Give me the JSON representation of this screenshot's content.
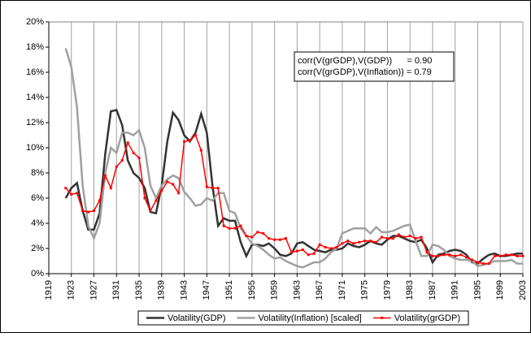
{
  "chart_data": {
    "type": "line",
    "x": [
      1922,
      1923,
      1924,
      1925,
      1926,
      1927,
      1928,
      1929,
      1930,
      1931,
      1932,
      1933,
      1934,
      1935,
      1936,
      1937,
      1938,
      1939,
      1940,
      1941,
      1942,
      1943,
      1944,
      1945,
      1946,
      1947,
      1948,
      1949,
      1950,
      1951,
      1952,
      1953,
      1954,
      1955,
      1956,
      1957,
      1958,
      1959,
      1960,
      1961,
      1962,
      1963,
      1964,
      1965,
      1966,
      1967,
      1968,
      1969,
      1970,
      1971,
      1972,
      1973,
      1974,
      1975,
      1976,
      1977,
      1978,
      1979,
      1980,
      1981,
      1982,
      1983,
      1984,
      1985,
      1986,
      1987,
      1988,
      1989,
      1990,
      1991,
      1992,
      1993,
      1994,
      1995,
      1996,
      1997,
      1998,
      1999,
      2000,
      2001,
      2002,
      2003
    ],
    "series": [
      {
        "name": "Volatility(GDP)",
        "color": "#333333",
        "values": [
          6.0,
          6.8,
          7.2,
          5.0,
          3.5,
          3.5,
          4.8,
          9.5,
          12.9,
          13.0,
          11.8,
          9.0,
          8.0,
          7.6,
          6.8,
          4.9,
          4.8,
          7.0,
          10.5,
          12.8,
          12.2,
          11.0,
          10.5,
          11.2,
          12.7,
          11.2,
          7.0,
          3.8,
          4.4,
          4.2,
          4.2,
          2.5,
          1.4,
          2.3,
          2.3,
          2.2,
          2.4,
          2.0,
          1.5,
          1.4,
          1.6,
          2.4,
          2.5,
          2.2,
          1.9,
          1.8,
          1.7,
          1.9,
          1.9,
          2.0,
          2.4,
          2.2,
          2.1,
          2.3,
          2.6,
          2.4,
          2.3,
          2.7,
          3.0,
          3.0,
          2.8,
          2.6,
          2.5,
          2.7,
          2.0,
          0.9,
          1.5,
          1.6,
          1.8,
          1.9,
          1.8,
          1.5,
          0.9,
          0.8,
          1.2,
          1.5,
          1.6,
          1.4,
          1.4,
          1.5,
          1.6,
          1.6
        ]
      },
      {
        "name": "Volatility(Inflation) [scaled]",
        "color": "#a0a0a0",
        "values": [
          17.9,
          16.4,
          13.2,
          7.0,
          3.8,
          2.8,
          4.0,
          8.0,
          10.0,
          9.6,
          11.2,
          11.2,
          11.0,
          11.4,
          10.0,
          7.0,
          6.0,
          7.0,
          7.5,
          7.8,
          7.6,
          6.5,
          6.0,
          5.4,
          5.5,
          6.0,
          5.8,
          6.4,
          6.4,
          5.0,
          4.8,
          3.6,
          3.0,
          2.4,
          2.2,
          1.9,
          1.5,
          1.2,
          1.3,
          1.0,
          0.8,
          0.6,
          0.5,
          0.7,
          0.9,
          0.9,
          1.2,
          1.7,
          2.0,
          3.2,
          3.4,
          3.6,
          3.6,
          3.6,
          3.2,
          3.7,
          3.3,
          3.3,
          3.4,
          3.6,
          3.8,
          3.9,
          2.6,
          1.4,
          1.4,
          2.3,
          2.2,
          1.9,
          1.4,
          1.2,
          1.1,
          1.1,
          1.0,
          0.6,
          0.7,
          0.8,
          1.0,
          1.0,
          1.0,
          1.1,
          0.8,
          0.8
        ]
      },
      {
        "name": "Volatility(grGDP)",
        "color": "#ff0000",
        "marker": true,
        "values": [
          6.8,
          6.3,
          6.4,
          5.0,
          4.9,
          5.0,
          5.8,
          7.8,
          6.8,
          8.5,
          9.0,
          10.4,
          9.6,
          9.2,
          6.0,
          5.0,
          5.8,
          6.6,
          7.3,
          7.1,
          6.4,
          10.5,
          10.6,
          11.0,
          9.8,
          6.9,
          6.8,
          6.8,
          3.8,
          3.6,
          3.6,
          3.8,
          3.0,
          2.9,
          3.3,
          3.2,
          2.8,
          2.7,
          2.7,
          2.8,
          1.7,
          1.8,
          1.9,
          1.5,
          1.6,
          2.3,
          2.1,
          2.0,
          2.1,
          2.4,
          2.6,
          2.4,
          2.5,
          2.6,
          2.6,
          2.5,
          2.9,
          2.8,
          2.8,
          3.1,
          2.9,
          3.0,
          2.8,
          2.9,
          1.7,
          1.4,
          1.4,
          1.5,
          1.5,
          1.4,
          1.5,
          1.3,
          1.1,
          0.9,
          0.8,
          0.8,
          1.4,
          1.4,
          1.5,
          1.5,
          1.4,
          1.4
        ]
      }
    ],
    "xlim": [
      1919,
      2003
    ],
    "xticks": [
      1919,
      1923,
      1927,
      1931,
      1935,
      1939,
      1943,
      1947,
      1951,
      1955,
      1959,
      1963,
      1967,
      1971,
      1975,
      1979,
      1983,
      1987,
      1991,
      1995,
      1999,
      2003
    ],
    "ylim": [
      0,
      20
    ],
    "yticks": [
      {
        "value": 0,
        "label": "0%"
      },
      {
        "value": 2,
        "label": "2%"
      },
      {
        "value": 4,
        "label": "4%"
      },
      {
        "value": 6,
        "label": "6%"
      },
      {
        "value": 8,
        "label": "8%"
      },
      {
        "value": 10,
        "label": "10%"
      },
      {
        "value": 12,
        "label": "12%"
      },
      {
        "value": 14,
        "label": "14%"
      },
      {
        "value": 16,
        "label": "16%"
      },
      {
        "value": 18,
        "label": "18%"
      },
      {
        "value": 20,
        "label": "20%"
      }
    ],
    "xgrid": true,
    "legend": "bottom",
    "annotations": [
      "corr(V(grGDP),V(GDP))      = 0.90",
      "corr(V(grGDP),V(Inflation)) = 0.79"
    ]
  }
}
